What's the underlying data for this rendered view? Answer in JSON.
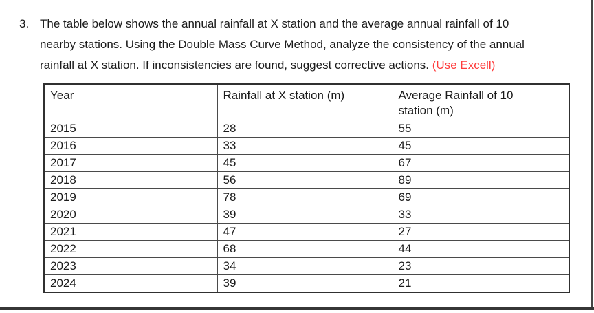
{
  "question": {
    "number": "3.",
    "line1": "The table below shows the annual rainfall at X station and the average annual rainfall of 10",
    "line2": "nearby stations. Using the Double Mass Curve Method, analyze the consistency of the annual",
    "line3_black": "rainfall at X station. If inconsistencies are found, suggest corrective actions. ",
    "line3_red": "(Use Excell)"
  },
  "colors": {
    "text": "#1b1b1b",
    "highlight_red": "#ff3a3a",
    "table_border": "#4a4a4a",
    "page_edge": "#3c3c3c"
  },
  "table": {
    "headers": {
      "year": "Year",
      "rainfall_x": "Rainfall at X station (m)",
      "avg_line1": "Average Rainfall of 10",
      "avg_line2": "station (m)"
    },
    "rows": [
      [
        "2015",
        "28",
        "55"
      ],
      [
        "2016",
        "33",
        "45"
      ],
      [
        "2017",
        "45",
        "67"
      ],
      [
        "2018",
        "56",
        "89"
      ],
      [
        "2019",
        "78",
        "69"
      ],
      [
        "2020",
        "39",
        "33"
      ],
      [
        "2021",
        "47",
        "27"
      ],
      [
        "2022",
        "68",
        "44"
      ],
      [
        "2023",
        "34",
        "23"
      ],
      [
        "2024",
        "39",
        "21"
      ]
    ]
  }
}
